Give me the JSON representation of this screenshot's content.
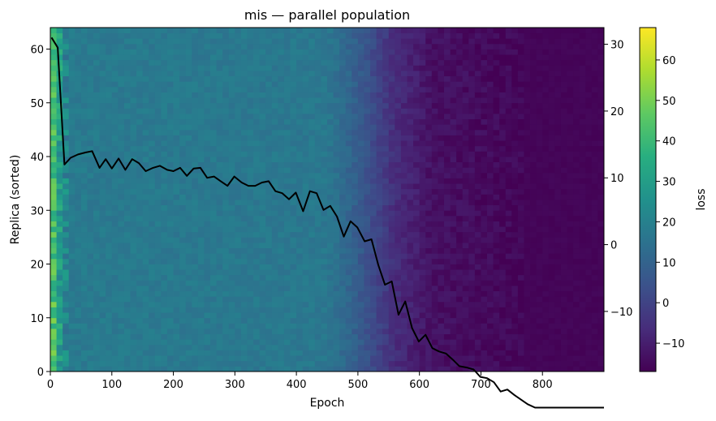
{
  "chart_data": {
    "type": "heatmap",
    "title": "mis — parallel population",
    "xlabel": "Epoch",
    "ylabel": "Replica (sorted)",
    "colorbar_label": "loss",
    "xlim": [
      0,
      900
    ],
    "ylim": [
      0,
      64
    ],
    "right_ylim": [
      -19.0,
      32.5
    ],
    "clim": [
      -17,
      68
    ],
    "x_ticks": [
      0,
      100,
      200,
      300,
      400,
      500,
      600,
      700,
      800
    ],
    "y_ticks": [
      0,
      10,
      20,
      30,
      40,
      50,
      60
    ],
    "right_y_ticks": [
      -10,
      0,
      10,
      20,
      30
    ],
    "colorbar_ticks": [
      -10,
      0,
      10,
      20,
      30,
      40,
      50,
      60
    ],
    "colormap": "viridis",
    "epoch_bin_width": 10,
    "replicas": 64,
    "column_mean_loss_profile": [
      {
        "epoch": 0,
        "loss": 52
      },
      {
        "epoch": 10,
        "loss": 34
      },
      {
        "epoch": 30,
        "loss": 18
      },
      {
        "epoch": 450,
        "loss": 17
      },
      {
        "epoch": 500,
        "loss": 8
      },
      {
        "epoch": 560,
        "loss": -6
      },
      {
        "epoch": 620,
        "loss": -13
      },
      {
        "epoch": 770,
        "loss": -16
      },
      {
        "epoch": 900,
        "loss": -16
      }
    ],
    "series": [
      {
        "axis": "right",
        "color": "#000000",
        "points": [
          [
            2,
            31.0
          ],
          [
            12,
            29.5
          ],
          [
            23,
            12.0
          ],
          [
            33,
            13.0
          ],
          [
            45,
            13.5
          ],
          [
            57,
            13.8
          ],
          [
            68,
            14.0
          ],
          [
            80,
            11.5
          ],
          [
            90,
            12.8
          ],
          [
            100,
            11.4
          ],
          [
            111,
            12.9
          ],
          [
            122,
            11.2
          ],
          [
            133,
            12.8
          ],
          [
            144,
            12.2
          ],
          [
            155,
            11.0
          ],
          [
            167,
            11.5
          ],
          [
            178,
            11.8
          ],
          [
            190,
            11.2
          ],
          [
            200,
            11.0
          ],
          [
            211,
            11.5
          ],
          [
            222,
            10.3
          ],
          [
            233,
            11.4
          ],
          [
            244,
            11.5
          ],
          [
            255,
            10.0
          ],
          [
            266,
            10.2
          ],
          [
            277,
            9.5
          ],
          [
            288,
            8.8
          ],
          [
            299,
            10.2
          ],
          [
            311,
            9.3
          ],
          [
            322,
            8.8
          ],
          [
            333,
            8.8
          ],
          [
            344,
            9.3
          ],
          [
            355,
            9.5
          ],
          [
            366,
            8.0
          ],
          [
            377,
            7.7
          ],
          [
            388,
            6.8
          ],
          [
            399,
            7.8
          ],
          [
            411,
            5.0
          ],
          [
            422,
            8.0
          ],
          [
            433,
            7.7
          ],
          [
            444,
            5.2
          ],
          [
            455,
            5.8
          ],
          [
            466,
            4.2
          ],
          [
            477,
            1.2
          ],
          [
            488,
            3.5
          ],
          [
            499,
            2.6
          ],
          [
            511,
            0.5
          ],
          [
            522,
            0.8
          ],
          [
            533,
            -3.0
          ],
          [
            544,
            -6.0
          ],
          [
            555,
            -5.5
          ],
          [
            566,
            -10.5
          ],
          [
            577,
            -8.5
          ],
          [
            588,
            -12.5
          ],
          [
            599,
            -14.5
          ],
          [
            610,
            -13.5
          ],
          [
            621,
            -15.5
          ],
          [
            632,
            -16.0
          ],
          [
            643,
            -16.3
          ],
          [
            654,
            -17.2
          ],
          [
            665,
            -18.2
          ],
          [
            677,
            -18.4
          ],
          [
            688,
            -18.7
          ],
          [
            699,
            -19.8
          ],
          [
            710,
            -20.0
          ],
          [
            721,
            -20.6
          ],
          [
            732,
            -22.0
          ],
          [
            743,
            -21.7
          ],
          [
            754,
            -22.5
          ],
          [
            765,
            -23.2
          ],
          [
            776,
            -23.9
          ],
          [
            788,
            -24.4
          ],
          [
            799,
            -24.4
          ],
          [
            900,
            -24.4
          ]
        ]
      }
    ]
  }
}
